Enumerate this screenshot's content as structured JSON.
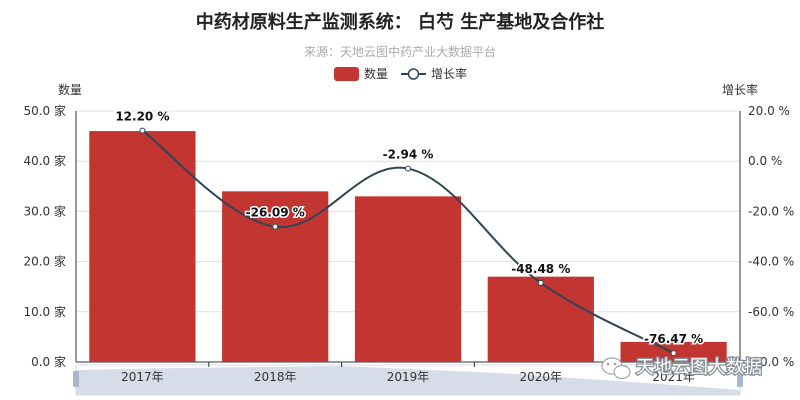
{
  "chart_data": {
    "type": "bar",
    "title": "中药材原料生产监测系统： 白芍 生产基地及合作社",
    "subtitle": "来源：天地云图中药产业大数据平台",
    "categories": [
      "2017年",
      "2018年",
      "2019年",
      "2020年",
      "2021年"
    ],
    "series": [
      {
        "name": "数量",
        "kind": "bar",
        "axis": "left",
        "values": [
          46,
          34,
          33,
          17,
          4
        ]
      },
      {
        "name": "增长率",
        "kind": "line",
        "axis": "right",
        "values": [
          12.2,
          -26.09,
          -2.94,
          -48.48,
          -76.47
        ]
      }
    ],
    "data_labels": [
      "12.20 %",
      "-26.09 %",
      "-2.94 %",
      "-48.48 %",
      "-76.47 %"
    ],
    "ylabel": "数量",
    "y2label": "增长率",
    "ylim": [
      0,
      50
    ],
    "y2lim": [
      -80,
      20
    ],
    "y_ticks": [
      "0.0 家",
      "10.0 家",
      "20.0 家",
      "30.0 家",
      "40.0 家",
      "50.0 家"
    ],
    "y2_ticks": [
      "-80.0 %",
      "-60.0 %",
      "-40.0 %",
      "-20.0 %",
      "0.0 %",
      "20.0 %"
    ],
    "grid": true,
    "legend_position": "top-center",
    "colors": {
      "bar": "#c23531",
      "line": "#2f4554",
      "grid": "#e0e0e0",
      "zoom_fill": "#d7dde8"
    }
  },
  "watermark": {
    "text": "天地云图大数据",
    "icon": "wechat-icon"
  }
}
